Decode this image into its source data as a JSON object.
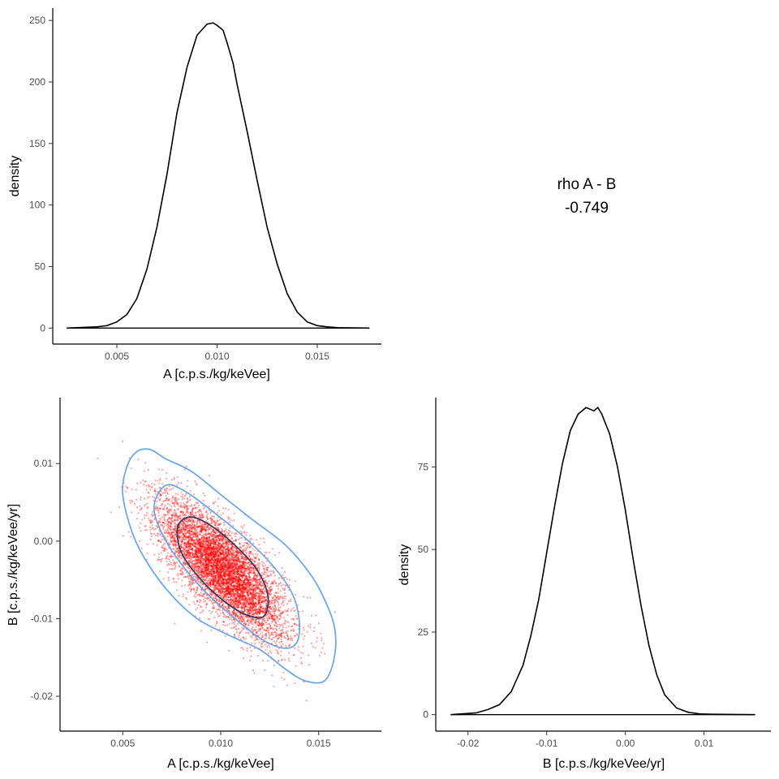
{
  "chart_data": [
    {
      "type": "line",
      "panel": "A marginal density",
      "xlabel": "A [c.p.s./kg/keVee]",
      "ylabel": "density",
      "xlim": [
        0.0018,
        0.0182
      ],
      "ylim": [
        -13,
        260
      ],
      "xticks": [
        0.005,
        0.01,
        0.015
      ],
      "xtick_labels": [
        "0.005",
        "0.010",
        "0.015"
      ],
      "yticks": [
        0,
        50,
        100,
        150,
        200,
        250
      ],
      "ytick_labels": [
        "0",
        "50",
        "100",
        "150",
        "200",
        "250"
      ],
      "grid": false,
      "series": [
        {
          "x": [
            0.0025,
            0.004,
            0.0045,
            0.005,
            0.0055,
            0.006,
            0.0065,
            0.007,
            0.0075,
            0.008,
            0.0085,
            0.009,
            0.0095,
            0.0098,
            0.01,
            0.0103,
            0.0105,
            0.0108,
            0.011,
            0.0115,
            0.012,
            0.0125,
            0.013,
            0.0135,
            0.014,
            0.0145,
            0.015,
            0.0155,
            0.016,
            0.0176
          ],
          "y": [
            0,
            1,
            2,
            5,
            11,
            24,
            48,
            82,
            125,
            175,
            212,
            238,
            247,
            248,
            246,
            242,
            232,
            215,
            198,
            160,
            120,
            82,
            52,
            28,
            13,
            5,
            2,
            1,
            0.3,
            0
          ]
        }
      ]
    },
    {
      "type": "scatter",
      "panel": "A vs B joint",
      "xlabel": "A [c.p.s./kg/keVee]",
      "ylabel": "B [c.p.s./kg/keVee/yr]",
      "xlim": [
        0.0018,
        0.0182
      ],
      "ylim": [
        -0.0245,
        0.0185
      ],
      "xticks": [
        0.005,
        0.01,
        0.015
      ],
      "xtick_labels": [
        "0.005",
        "0.010",
        "0.015"
      ],
      "yticks": [
        -0.02,
        -0.01,
        0.0,
        0.01
      ],
      "ytick_labels": [
        "-0.02",
        "-0.01",
        "0.00",
        "0.01"
      ],
      "grid": false,
      "correlation": -0.749,
      "center": [
        0.0101,
        -0.0037
      ],
      "sd": [
        0.00158,
        0.0043
      ],
      "contours": [
        {
          "level": "outer",
          "color": "#6aa5e8",
          "points": [
            [
              0.0057,
              0.0115
            ],
            [
              0.0064,
              0.0118
            ],
            [
              0.0072,
              0.0106
            ],
            [
              0.0085,
              0.009
            ],
            [
              0.01,
              0.006
            ],
            [
              0.0115,
              0.003
            ],
            [
              0.0133,
              -0.0005
            ],
            [
              0.0145,
              -0.004
            ],
            [
              0.0152,
              -0.007
            ],
            [
              0.0158,
              -0.011
            ],
            [
              0.0158,
              -0.015
            ],
            [
              0.0153,
              -0.018
            ],
            [
              0.0143,
              -0.018
            ],
            [
              0.0133,
              -0.0165
            ],
            [
              0.012,
              -0.014
            ],
            [
              0.0103,
              -0.012
            ],
            [
              0.0088,
              -0.01
            ],
            [
              0.0075,
              -0.007
            ],
            [
              0.0063,
              -0.003
            ],
            [
              0.0055,
              0.001
            ],
            [
              0.005,
              0.006
            ],
            [
              0.0052,
              0.0095
            ]
          ]
        },
        {
          "level": "middle",
          "color": "#6aa5e8",
          "points": [
            [
              0.0072,
              0.0072
            ],
            [
              0.0082,
              0.0064
            ],
            [
              0.0095,
              0.004
            ],
            [
              0.0112,
              0.0005
            ],
            [
              0.0126,
              -0.003
            ],
            [
              0.0136,
              -0.0065
            ],
            [
              0.014,
              -0.01
            ],
            [
              0.0139,
              -0.013
            ],
            [
              0.0132,
              -0.0138
            ],
            [
              0.012,
              -0.0125
            ],
            [
              0.0105,
              -0.0095
            ],
            [
              0.0092,
              -0.0065
            ],
            [
              0.008,
              -0.003
            ],
            [
              0.007,
              0.001
            ],
            [
              0.0066,
              0.0045
            ]
          ]
        },
        {
          "level": "inner",
          "color": "#2e3a5c",
          "points": [
            [
              0.0084,
              0.0031
            ],
            [
              0.0093,
              0.0023
            ],
            [
              0.0105,
              0.0
            ],
            [
              0.0118,
              -0.0035
            ],
            [
              0.0124,
              -0.007
            ],
            [
              0.0122,
              -0.0097
            ],
            [
              0.0113,
              -0.0095
            ],
            [
              0.0102,
              -0.0078
            ],
            [
              0.009,
              -0.005
            ],
            [
              0.008,
              -0.0015
            ],
            [
              0.0078,
              0.0018
            ]
          ]
        }
      ],
      "point_color": "#ff0000"
    },
    {
      "type": "line",
      "panel": "B marginal density",
      "xlabel": "B [c.p.s./kg/keVee/yr]",
      "ylabel": "density",
      "xlim": [
        -0.0241,
        0.0185
      ],
      "ylim": [
        -5,
        96
      ],
      "xticks": [
        -0.02,
        -0.01,
        0.0,
        0.01
      ],
      "xtick_labels": [
        "-0.02",
        "-0.01",
        "0.00",
        "0.01"
      ],
      "yticks": [
        0,
        25,
        50,
        75
      ],
      "ytick_labels": [
        "0",
        "25",
        "50",
        "75"
      ],
      "grid": false,
      "series": [
        {
          "x": [
            -0.0222,
            -0.019,
            -0.0175,
            -0.016,
            -0.0145,
            -0.013,
            -0.012,
            -0.011,
            -0.01,
            -0.009,
            -0.008,
            -0.007,
            -0.006,
            -0.005,
            -0.004,
            -0.0035,
            -0.003,
            -0.002,
            -0.001,
            0.0,
            0.001,
            0.002,
            0.003,
            0.004,
            0.005,
            0.0065,
            0.008,
            0.0095,
            0.011,
            0.0165
          ],
          "y": [
            0,
            0.5,
            1.5,
            3,
            7,
            15,
            24,
            35,
            49,
            63,
            76,
            86,
            91,
            93,
            92,
            93,
            91,
            85,
            75,
            62,
            47,
            33,
            21,
            12,
            6,
            2,
            0.7,
            0.2,
            0.1,
            0
          ]
        }
      ]
    }
  ],
  "annotation": {
    "line1": "rho A - B",
    "line2": "-0.749"
  }
}
